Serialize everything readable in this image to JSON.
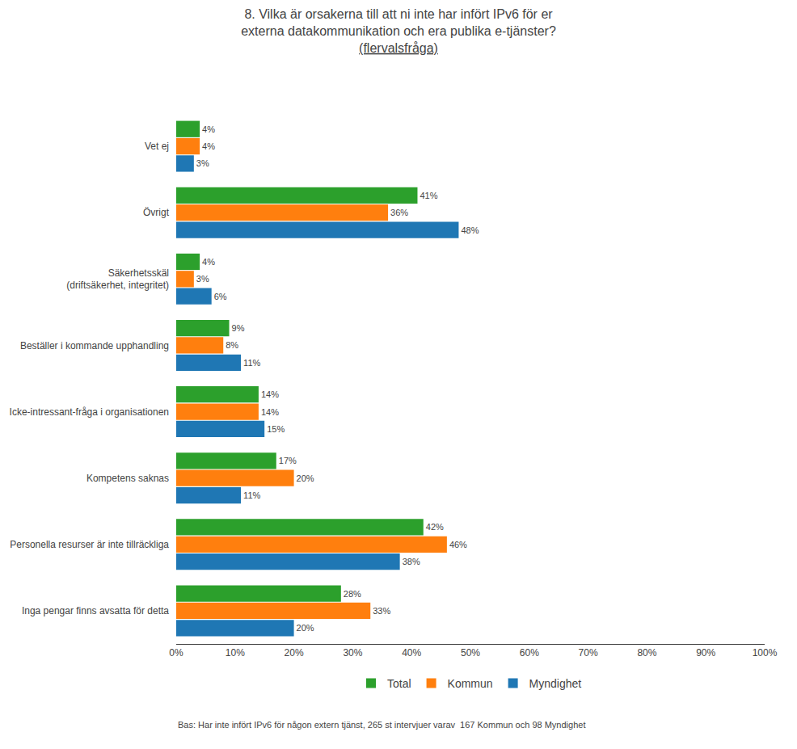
{
  "chart_data": {
    "type": "bar",
    "orientation": "horizontal",
    "title": "8. Vilka är orsakerna till att ni inte har infört IPv6 för er\nexterna datakommunikation och era publika e-tjänster?",
    "subtitle": "(flervalsfråga)",
    "categories": [
      "Inga pengar finns avsatta för detta",
      "Personella resurser är inte tillräckliga",
      "Kompetens saknas",
      "Icke-intressant-fråga i organisationen",
      "Beställer i kommande upphandling",
      "Säkerhetsskäl\n(driftsäkerhet, integritet)",
      "Övrigt",
      "Vet ej"
    ],
    "series": [
      {
        "name": "Total",
        "values": [
          28,
          42,
          17,
          14,
          9,
          4,
          41,
          4
        ],
        "value_labels": [
          "28%",
          "42%",
          "17%",
          "14%",
          "9%",
          "4%",
          "41%",
          "4%"
        ]
      },
      {
        "name": "Kommun",
        "values": [
          33,
          46,
          20,
          14,
          8,
          3,
          36,
          4
        ],
        "value_labels": [
          "33%",
          "46%",
          "20%",
          "14%",
          "8%",
          "3%",
          "36%",
          "4%"
        ]
      },
      {
        "name": "Myndighet",
        "values": [
          20,
          38,
          11,
          15,
          11,
          6,
          48,
          3
        ],
        "value_labels": [
          "20%",
          "38%",
          "11%",
          "15%",
          "11%",
          "6%",
          "48%",
          "3%"
        ]
      }
    ],
    "xlim": [
      0,
      100
    ],
    "xticks": [
      {
        "value": 0,
        "label": "0%"
      },
      {
        "value": 10,
        "label": "10%"
      },
      {
        "value": 20,
        "label": "20%"
      },
      {
        "value": 30,
        "label": "30%"
      },
      {
        "value": 40,
        "label": "40%"
      },
      {
        "value": 50,
        "label": "50%"
      },
      {
        "value": 60,
        "label": "60%"
      },
      {
        "value": 70,
        "label": "70%"
      },
      {
        "value": 80,
        "label": "80%"
      },
      {
        "value": 90,
        "label": "90%"
      },
      {
        "value": 100,
        "label": "100%"
      }
    ],
    "grid": false,
    "legend": "bottom",
    "data_labels": true,
    "annotations": [
      "Bas: Har inte infört IPv6 för någon extern tjänst, 265 st intervjuer varav  167 Kommun och 98 Myndighet"
    ]
  }
}
